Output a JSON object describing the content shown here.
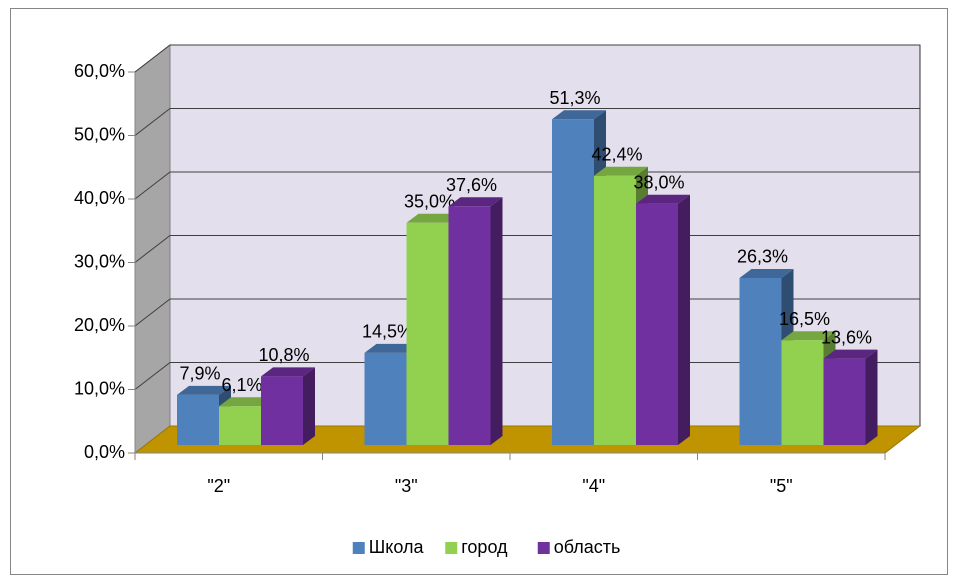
{
  "chart_data": {
    "type": "bar3d",
    "categories": [
      "\"2\"",
      "\"3\"",
      "\"4\"",
      "\"5\""
    ],
    "series": [
      {
        "name": "Школа",
        "color": "#4f81bd",
        "values": [
          7.9,
          14.5,
          51.3,
          26.3
        ],
        "value_labels": [
          "7,9%",
          "14,5%",
          "51,3%",
          "26,3%"
        ]
      },
      {
        "name": "город",
        "color": "#92d050",
        "values": [
          6.1,
          35.0,
          42.4,
          16.5
        ],
        "value_labels": [
          "6,1%",
          "35,0%",
          "42,4%",
          "16,5%"
        ]
      },
      {
        "name": "область",
        "color": "#7030a0",
        "values": [
          10.8,
          37.6,
          38.0,
          13.6
        ],
        "value_labels": [
          "10,8%",
          "37,6%",
          "38,0%",
          "13,6%"
        ]
      }
    ],
    "ylim": [
      0,
      60
    ],
    "yticks": [
      {
        "value": 0,
        "label": "0,0%"
      },
      {
        "value": 10,
        "label": "10,0%"
      },
      {
        "value": 20,
        "label": "20,0%"
      },
      {
        "value": 30,
        "label": "30,0%"
      },
      {
        "value": 40,
        "label": "40,0%"
      },
      {
        "value": 50,
        "label": "50,0%"
      },
      {
        "value": 60,
        "label": "60,0%"
      }
    ],
    "grid": true,
    "legend": "bottom"
  }
}
